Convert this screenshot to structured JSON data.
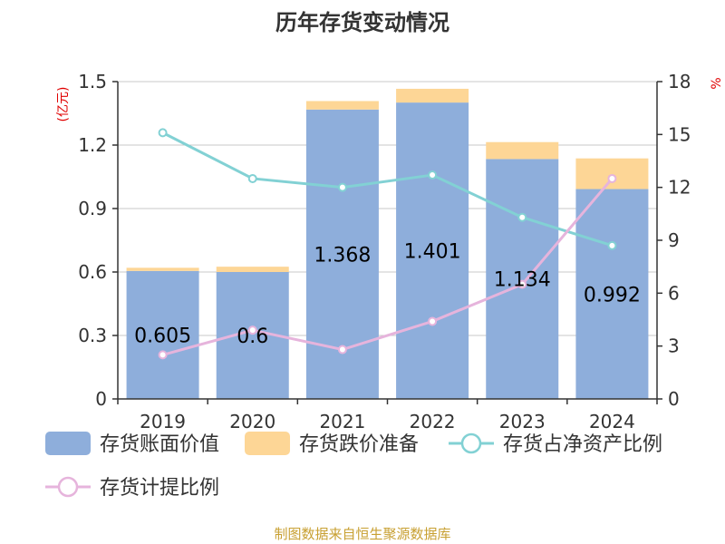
{
  "title": "历年存货变动情况",
  "source": "制图数据来自恒生聚源数据库",
  "chart_data": {
    "type": "bar",
    "categories": [
      "2019",
      "2020",
      "2021",
      "2022",
      "2023",
      "2024"
    ],
    "left_unit": "(亿元)",
    "right_unit": "%",
    "ylim": [
      0,
      1.5
    ],
    "yticks": [
      "0",
      "0.3",
      "0.6",
      "0.9",
      "1.2",
      "1.5"
    ],
    "y2lim": [
      0,
      18
    ],
    "y2ticks": [
      "0",
      "3",
      "6",
      "9",
      "12",
      "15",
      "18"
    ],
    "grid": true,
    "legend_position": "bottom",
    "series": [
      {
        "name": "存货账面价值",
        "kind": "bar",
        "stack": "inventory",
        "color": "#8eaedb",
        "values": [
          0.605,
          0.6,
          1.368,
          1.401,
          1.134,
          0.992
        ],
        "value_labels": [
          "0.605",
          "0.6",
          "1.368",
          "1.401",
          "1.134",
          "0.992"
        ]
      },
      {
        "name": "存货跌价准备",
        "kind": "bar",
        "stack": "inventory",
        "color": "#fdd696",
        "values": [
          0.015,
          0.025,
          0.04,
          0.065,
          0.08,
          0.145
        ]
      },
      {
        "name": "存货占净资产比例",
        "kind": "line",
        "axis": "right",
        "color": "#82d1d4",
        "values": [
          15.1,
          12.5,
          12.0,
          12.7,
          10.3,
          8.7
        ]
      },
      {
        "name": "存货计提比例",
        "kind": "line",
        "axis": "right",
        "color": "#e6b4dc",
        "values": [
          2.5,
          3.9,
          2.8,
          4.4,
          6.5,
          12.5
        ]
      }
    ]
  }
}
